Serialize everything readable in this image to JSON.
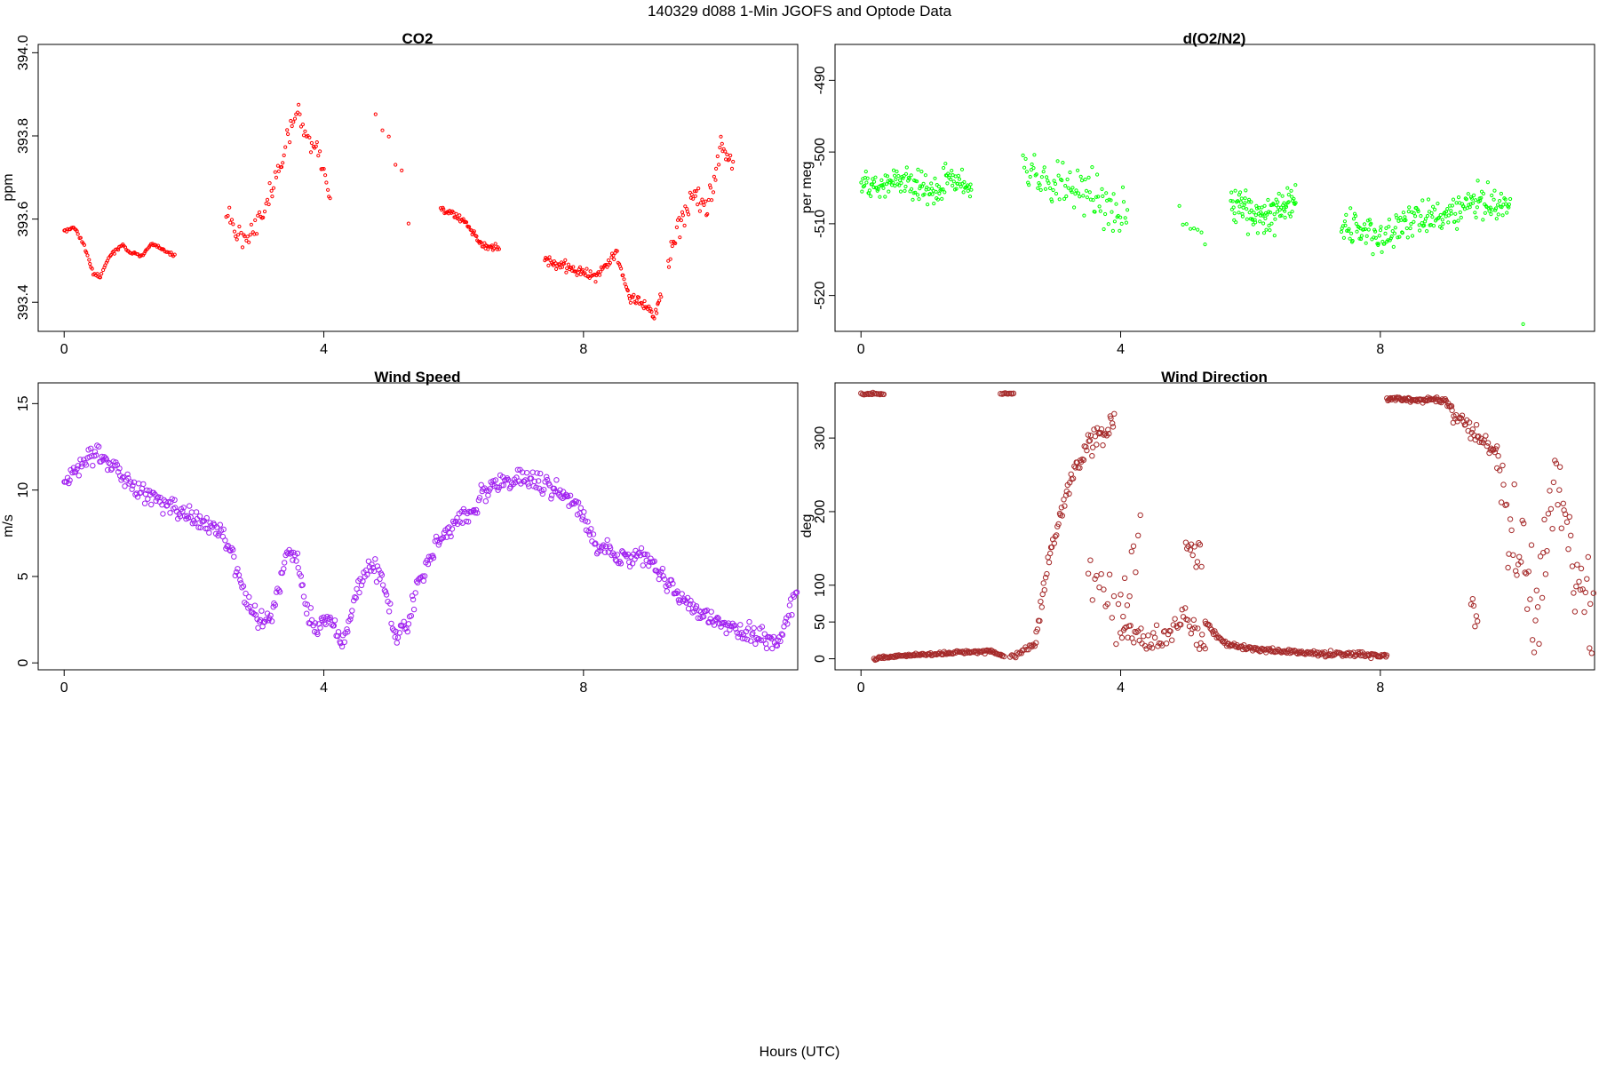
{
  "figure": {
    "title": "140329   d088   1-Min  JGOFS and Optode Data",
    "xlabel": "Hours (UTC)"
  },
  "chart_data": [
    {
      "id": "co2",
      "type": "scatter",
      "title": "CO2",
      "ylabel": "ppm",
      "xlim": [
        -0.4,
        11.3
      ],
      "ylim": [
        393.33,
        394.02
      ],
      "xticks": [
        "0",
        "4",
        "8"
      ],
      "yticks": [
        "393.4",
        "393.6",
        "393.8",
        "394.0"
      ],
      "xtick_values": [
        0,
        4,
        8
      ],
      "ytick_values": [
        393.4,
        393.6,
        393.8,
        394.0
      ],
      "marker": {
        "shape": "circle",
        "size": 1.6,
        "color": "#ff0000"
      },
      "segments": [
        {
          "x0": 0.0,
          "x1": 1.7,
          "n": 95,
          "points": [
            [
              0,
              393.57
            ],
            [
              0.15,
              393.58
            ],
            [
              0.3,
              393.54
            ],
            [
              0.45,
              393.47
            ],
            [
              0.55,
              393.46
            ],
            [
              0.7,
              393.51
            ],
            [
              0.9,
              393.54
            ],
            [
              1.0,
              393.52
            ],
            [
              1.2,
              393.51
            ],
            [
              1.35,
              393.54
            ],
            [
              1.5,
              393.53
            ],
            [
              1.7,
              393.51
            ]
          ],
          "jitter": 0.006
        },
        {
          "x0": 2.5,
          "x1": 4.1,
          "n": 80,
          "points": [
            [
              2.5,
              393.62
            ],
            [
              2.65,
              393.56
            ],
            [
              2.8,
              393.56
            ],
            [
              2.95,
              393.59
            ],
            [
              3.2,
              393.68
            ],
            [
              3.4,
              393.76
            ],
            [
              3.6,
              393.87
            ],
            [
              3.7,
              393.8
            ],
            [
              3.85,
              393.78
            ],
            [
              4.0,
              393.72
            ],
            [
              4.1,
              393.65
            ]
          ],
          "jitter": 0.04
        },
        {
          "x0": 4.8,
          "x1": 5.3,
          "n": 6,
          "points": [
            [
              4.8,
              393.84
            ],
            [
              5.0,
              393.78
            ],
            [
              5.2,
              393.72
            ],
            [
              5.3,
              393.6
            ]
          ],
          "jitter": 0.03
        },
        {
          "x0": 5.8,
          "x1": 6.7,
          "n": 60,
          "points": [
            [
              5.8,
              393.62
            ],
            [
              6.0,
              393.61
            ],
            [
              6.2,
              393.59
            ],
            [
              6.4,
              393.54
            ],
            [
              6.55,
              393.53
            ],
            [
              6.7,
              393.53
            ]
          ],
          "jitter": 0.012
        },
        {
          "x0": 7.4,
          "x1": 9.2,
          "n": 120,
          "points": [
            [
              7.4,
              393.5
            ],
            [
              7.7,
              393.49
            ],
            [
              8.0,
              393.47
            ],
            [
              8.2,
              393.46
            ],
            [
              8.5,
              393.52
            ],
            [
              8.7,
              393.41
            ],
            [
              8.9,
              393.4
            ],
            [
              9.1,
              393.37
            ],
            [
              9.2,
              393.42
            ]
          ],
          "jitter": 0.02
        },
        {
          "x0": 9.3,
          "x1": 10.3,
          "n": 60,
          "points": [
            [
              9.3,
              393.5
            ],
            [
              9.5,
              393.6
            ],
            [
              9.7,
              393.66
            ],
            [
              9.9,
              393.62
            ],
            [
              10.1,
              393.78
            ],
            [
              10.3,
              393.72
            ]
          ],
          "jitter": 0.05
        }
      ]
    },
    {
      "id": "o2n2",
      "type": "scatter",
      "title": "d(O2/N2)",
      "ylabel": "per meg",
      "xlim": [
        -0.4,
        11.3
      ],
      "ylim": [
        -525,
        -485
      ],
      "xticks": [
        "0",
        "4",
        "8"
      ],
      "yticks": [
        "-520",
        "-510",
        "-500",
        "-490"
      ],
      "xtick_values": [
        0,
        4,
        8
      ],
      "ytick_values": [
        -520,
        -510,
        -500,
        -490
      ],
      "marker": {
        "shape": "circle",
        "size": 1.6,
        "color": "#00ff00"
      },
      "segments": [
        {
          "x0": 0.0,
          "x1": 1.7,
          "n": 140,
          "points": [
            [
              0,
              -505
            ],
            [
              0.5,
              -504
            ],
            [
              1.0,
              -505
            ],
            [
              1.5,
              -504
            ],
            [
              1.7,
              -505
            ]
          ],
          "jitter": 3.5
        },
        {
          "x0": 2.5,
          "x1": 4.1,
          "n": 95,
          "points": [
            [
              2.5,
              -502
            ],
            [
              3.0,
              -505
            ],
            [
              3.5,
              -505
            ],
            [
              4.0,
              -509
            ],
            [
              4.1,
              -510
            ]
          ],
          "jitter": 5.5
        },
        {
          "x0": 4.9,
          "x1": 5.3,
          "n": 8,
          "points": [
            [
              4.9,
              -509
            ],
            [
              5.3,
              -511
            ]
          ],
          "jitter": 3
        },
        {
          "x0": 5.7,
          "x1": 6.7,
          "n": 105,
          "points": [
            [
              5.7,
              -507
            ],
            [
              6.2,
              -509
            ],
            [
              6.7,
              -507
            ]
          ],
          "jitter": 4
        },
        {
          "x0": 7.4,
          "x1": 10.0,
          "n": 205,
          "points": [
            [
              7.4,
              -510
            ],
            [
              8.0,
              -512
            ],
            [
              8.5,
              -509
            ],
            [
              9.0,
              -509
            ],
            [
              9.5,
              -507
            ],
            [
              10.0,
              -508
            ]
          ],
          "jitter": 3.5
        }
      ],
      "extra_points": [
        [
          10.2,
          -524
        ]
      ]
    },
    {
      "id": "wspd",
      "type": "scatter",
      "title": "Wind Speed",
      "ylabel": "m/s",
      "xlim": [
        -0.4,
        11.3
      ],
      "ylim": [
        -0.4,
        16.2
      ],
      "xticks": [
        "0",
        "4",
        "8"
      ],
      "yticks": [
        "0",
        "5",
        "10",
        "15"
      ],
      "xtick_values": [
        0,
        4,
        8
      ],
      "ytick_values": [
        0,
        5,
        10,
        15
      ],
      "marker": {
        "shape": "circle",
        "size": 2.7,
        "color": "#a020f0"
      },
      "segments": [
        {
          "x0": 0.0,
          "x1": 11.3,
          "n": 640,
          "points": [
            [
              0,
              10.5
            ],
            [
              0.3,
              11.5
            ],
            [
              0.5,
              12.3
            ],
            [
              0.8,
              11.0
            ],
            [
              1.2,
              9.8
            ],
            [
              1.6,
              9.2
            ],
            [
              2.0,
              8.3
            ],
            [
              2.4,
              7.8
            ],
            [
              2.6,
              6.2
            ],
            [
              2.8,
              3.5
            ],
            [
              3.0,
              2.4
            ],
            [
              3.2,
              2.7
            ],
            [
              3.45,
              6.5
            ],
            [
              3.6,
              5.8
            ],
            [
              3.7,
              3.5
            ],
            [
              3.9,
              2.0
            ],
            [
              4.1,
              2.7
            ],
            [
              4.3,
              1.2
            ],
            [
              4.5,
              4.0
            ],
            [
              4.7,
              5.8
            ],
            [
              4.9,
              5.0
            ],
            [
              5.1,
              1.5
            ],
            [
              5.3,
              2.2
            ],
            [
              5.45,
              4.8
            ],
            [
              5.7,
              6.5
            ],
            [
              6.0,
              8.0
            ],
            [
              6.3,
              9.0
            ],
            [
              6.6,
              10.3
            ],
            [
              7.0,
              10.8
            ],
            [
              7.4,
              10.3
            ],
            [
              7.8,
              9.5
            ],
            [
              8.0,
              8.5
            ],
            [
              8.2,
              6.8
            ],
            [
              8.6,
              6.2
            ],
            [
              9.0,
              6.0
            ],
            [
              9.3,
              4.5
            ],
            [
              9.6,
              3.5
            ],
            [
              10.0,
              2.5
            ],
            [
              10.3,
              2.0
            ],
            [
              10.6,
              1.6
            ],
            [
              11.0,
              1.2
            ],
            [
              11.3,
              4.5
            ]
          ],
          "jitter": 0.85
        }
      ]
    },
    {
      "id": "wdir",
      "type": "scatter",
      "title": "Wind Direction",
      "ylabel": "deg",
      "xlim": [
        -0.4,
        11.3
      ],
      "ylim": [
        -15,
        375
      ],
      "xticks": [
        "0",
        "4",
        "8"
      ],
      "yticks": [
        "0",
        "50",
        "100",
        "200",
        "300"
      ],
      "xtick_values": [
        0,
        4,
        8
      ],
      "ytick_values": [
        0,
        50,
        100,
        200,
        300
      ],
      "marker": {
        "shape": "circle",
        "size": 2.7,
        "color": "#a52a2a"
      },
      "segments": [
        {
          "x0": 0.0,
          "x1": 0.35,
          "n": 18,
          "points": [
            [
              0,
              360
            ],
            [
              0.35,
              360
            ]
          ],
          "jitter": 2
        },
        {
          "x0": 0.2,
          "x1": 2.2,
          "n": 125,
          "points": [
            [
              0.2,
              0
            ],
            [
              0.8,
              5
            ],
            [
              1.4,
              8
            ],
            [
              2.0,
              10
            ],
            [
              2.2,
              3
            ]
          ],
          "jitter": 3
        },
        {
          "x0": 2.15,
          "x1": 2.35,
          "n": 10,
          "points": [
            [
              2.15,
              360
            ],
            [
              2.35,
              360
            ]
          ],
          "jitter": 2
        },
        {
          "x0": 2.3,
          "x1": 2.7,
          "n": 20,
          "points": [
            [
              2.3,
              2
            ],
            [
              2.7,
              20
            ]
          ],
          "jitter": 6
        },
        {
          "x0": 2.7,
          "x1": 3.9,
          "n": 75,
          "points": [
            [
              2.7,
              30
            ],
            [
              2.9,
              140
            ],
            [
              3.2,
              230
            ],
            [
              3.5,
              290
            ],
            [
              3.7,
              305
            ],
            [
              3.9,
              320
            ]
          ],
          "jitter": 25
        },
        {
          "x0": 3.5,
          "x1": 4.3,
          "n": 25,
          "points": [
            [
              3.5,
              120
            ],
            [
              4.0,
              50
            ],
            [
              4.3,
              200
            ]
          ],
          "jitter": 90
        },
        {
          "x0": 4.0,
          "x1": 5.3,
          "n": 60,
          "points": [
            [
              4.0,
              40
            ],
            [
              4.6,
              25
            ],
            [
              5.0,
              60
            ],
            [
              5.3,
              10
            ]
          ],
          "jitter": 25
        },
        {
          "x0": 5.0,
          "x1": 5.25,
          "n": 12,
          "points": [
            [
              5.0,
              160
            ],
            [
              5.25,
              130
            ]
          ],
          "jitter": 30
        },
        {
          "x0": 5.3,
          "x1": 8.1,
          "n": 170,
          "points": [
            [
              5.3,
              50
            ],
            [
              5.6,
              20
            ],
            [
              6.2,
              12
            ],
            [
              7.0,
              7
            ],
            [
              7.6,
              6
            ],
            [
              8.1,
              4
            ]
          ],
          "jitter": 5
        },
        {
          "x0": 8.1,
          "x1": 9.1,
          "n": 70,
          "points": [
            [
              8.1,
              355
            ],
            [
              8.5,
              352
            ],
            [
              9.0,
              352
            ],
            [
              9.1,
              340
            ]
          ],
          "jitter": 5
        },
        {
          "x0": 9.1,
          "x1": 9.8,
          "n": 40,
          "points": [
            [
              9.1,
              340
            ],
            [
              9.5,
              300
            ],
            [
              9.8,
              280
            ]
          ],
          "jitter": 20
        },
        {
          "x0": 9.4,
          "x1": 9.5,
          "n": 6,
          "points": [
            [
              9.4,
              80
            ],
            [
              9.5,
              40
            ]
          ],
          "jitter": 25
        },
        {
          "x0": 9.8,
          "x1": 11.3,
          "n": 75,
          "points": [
            [
              9.8,
              250
            ],
            [
              10.1,
              150
            ],
            [
              10.4,
              60
            ],
            [
              10.7,
              250
            ],
            [
              11.0,
              120
            ],
            [
              11.3,
              60
            ]
          ],
          "jitter": 100
        }
      ]
    }
  ]
}
